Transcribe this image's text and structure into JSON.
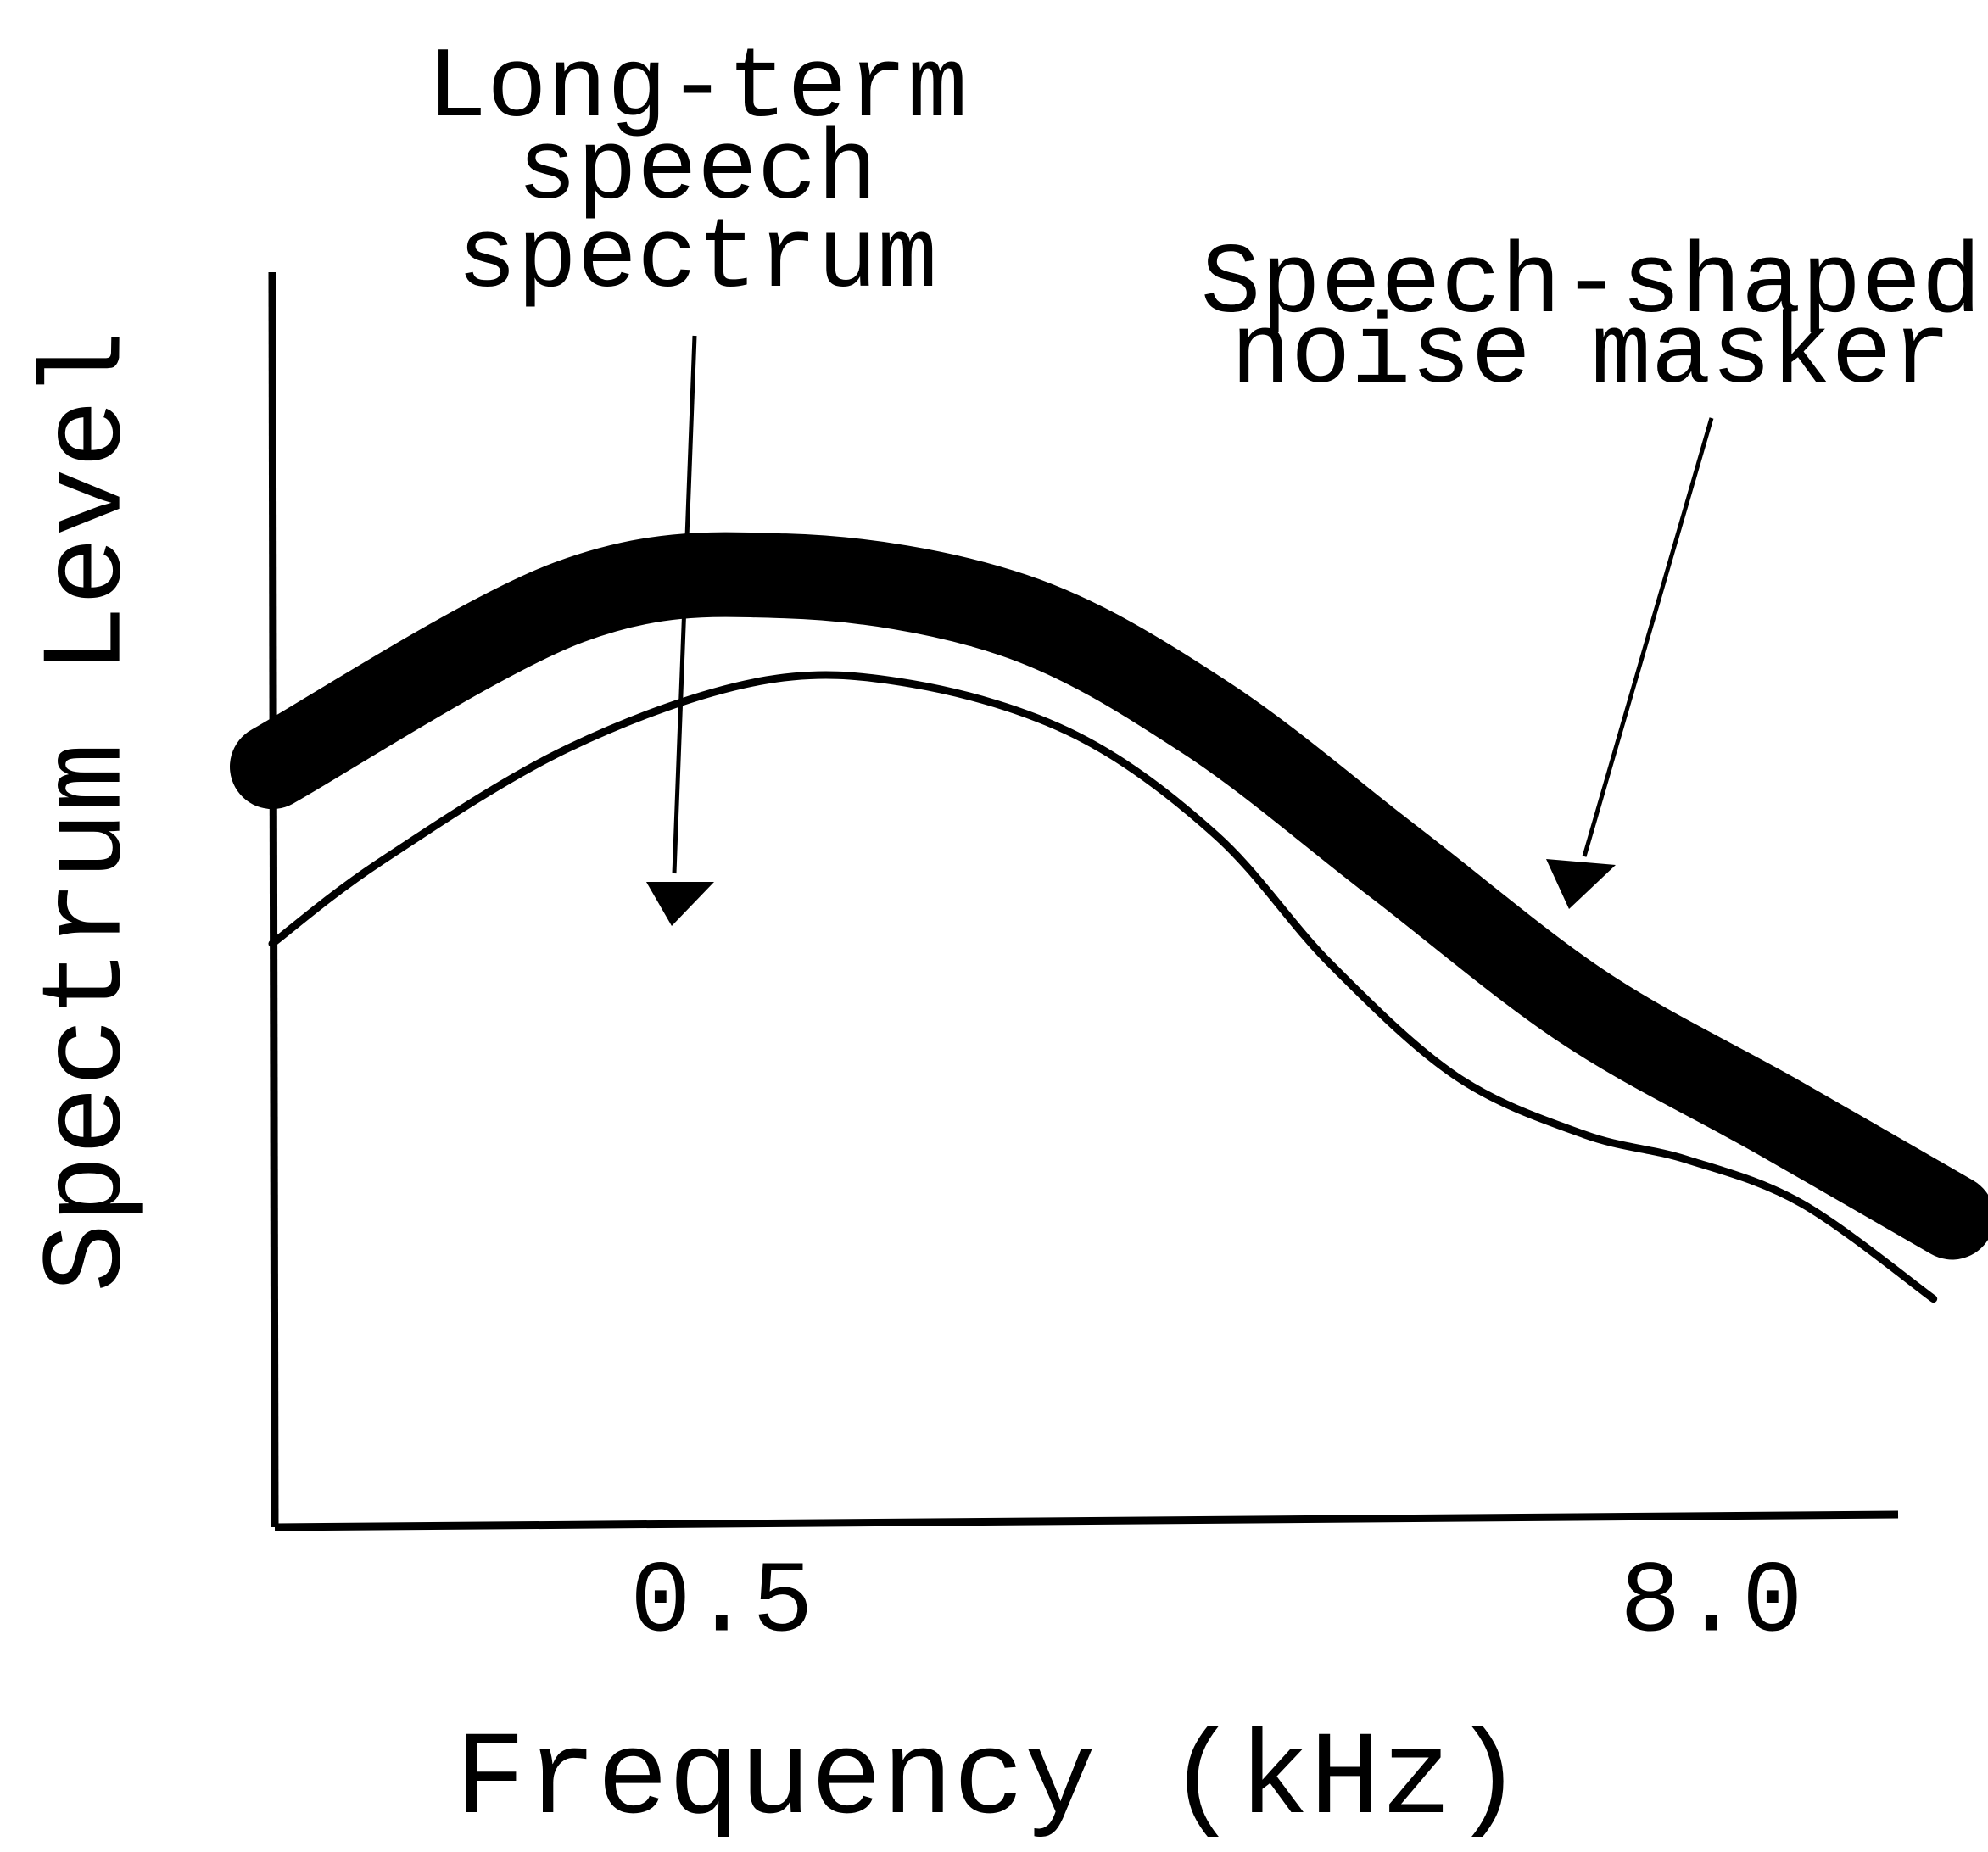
{
  "chart_data": {
    "type": "line",
    "xlabel": "Frequency (kHz)",
    "ylabel": "Spectrum Level",
    "xscale": "log",
    "xlim": [
      0.142,
      13.4
    ],
    "xticks": [
      0.5,
      {
        "value": 8,
        "label": "8.0"
      }
    ],
    "ylim": [
      0,
      100
    ],
    "grid": false,
    "annotations": [
      {
        "lines": [
          "Long-term",
          "speech",
          "spectrum"
        ]
      },
      {
        "lines": [
          "Speech-shaped",
          "noise masker"
        ]
      }
    ],
    "series": [
      {
        "color": "#000000",
        "style": "band",
        "x": [
          0.142,
          0.326,
          0.597,
          1.13,
          1.93,
          3.29,
          5.6,
          9.57,
          15.7
        ],
        "values": [
          60.6,
          73.7,
          75.8,
          72.7,
          64.6,
          53.0,
          41.4,
          32.8,
          24.7
        ]
      },
      {
        "color": "#000000",
        "style": "thin",
        "x": [
          0.142,
          0.192,
          0.326,
          0.556,
          0.852,
          1.35,
          2.0,
          2.75,
          3.92,
          5.6,
          7.46,
          10.3,
          14.9
        ],
        "values": [
          46.5,
          53.0,
          62.1,
          67.4,
          67.2,
          63.1,
          55.1,
          44.9,
          35.9,
          31.3,
          29.3,
          25.8,
          18.2
        ]
      }
    ]
  }
}
